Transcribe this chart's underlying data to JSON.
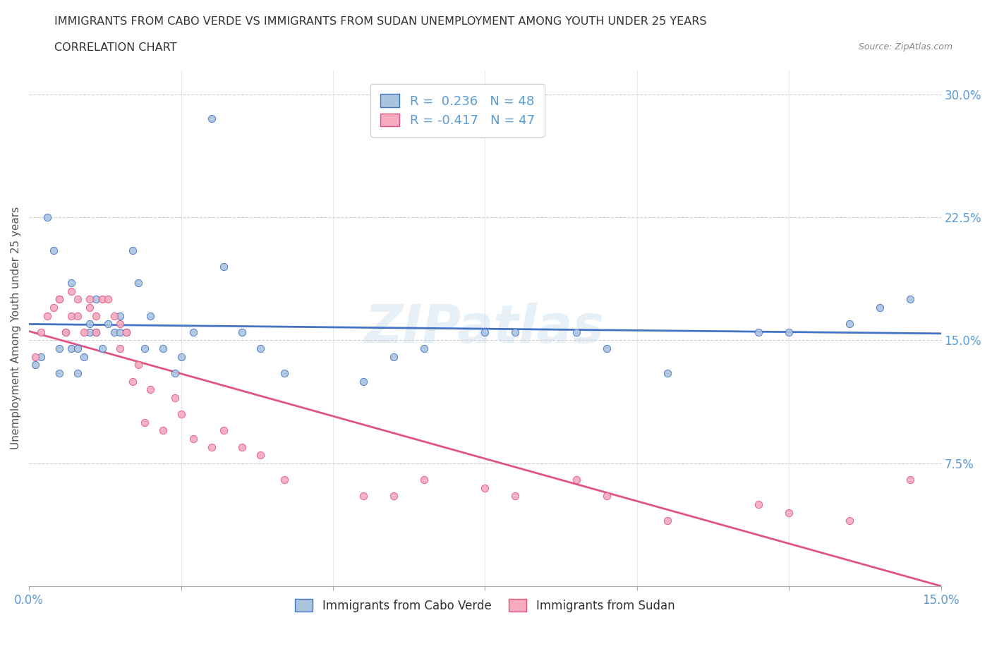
{
  "title_line1": "IMMIGRANTS FROM CABO VERDE VS IMMIGRANTS FROM SUDAN UNEMPLOYMENT AMONG YOUTH UNDER 25 YEARS",
  "title_line2": "CORRELATION CHART",
  "source": "Source: ZipAtlas.com",
  "ylabel": "Unemployment Among Youth under 25 years",
  "R_cabo": 0.236,
  "N_cabo": 48,
  "R_sudan": -0.417,
  "N_sudan": 47,
  "color_cabo": "#aac4e0",
  "color_sudan": "#f5aabf",
  "line_color_cabo": "#4472c4",
  "line_color_sudan": "#e05580",
  "watermark": "ZIPatlas",
  "legend_cabo": "Immigrants from Cabo Verde",
  "legend_sudan": "Immigrants from Sudan",
  "cabo_x": [
    0.001,
    0.002,
    0.003,
    0.004,
    0.005,
    0.005,
    0.006,
    0.007,
    0.007,
    0.008,
    0.008,
    0.009,
    0.01,
    0.01,
    0.011,
    0.011,
    0.012,
    0.013,
    0.014,
    0.015,
    0.015,
    0.016,
    0.017,
    0.018,
    0.019,
    0.02,
    0.022,
    0.024,
    0.025,
    0.027,
    0.03,
    0.032,
    0.035,
    0.038,
    0.042,
    0.055,
    0.06,
    0.065,
    0.075,
    0.08,
    0.09,
    0.095,
    0.105,
    0.12,
    0.125,
    0.135,
    0.14,
    0.145
  ],
  "cabo_y": [
    0.135,
    0.14,
    0.225,
    0.205,
    0.145,
    0.13,
    0.155,
    0.185,
    0.145,
    0.145,
    0.13,
    0.14,
    0.155,
    0.16,
    0.155,
    0.175,
    0.145,
    0.16,
    0.155,
    0.165,
    0.155,
    0.155,
    0.205,
    0.185,
    0.145,
    0.165,
    0.145,
    0.13,
    0.14,
    0.155,
    0.285,
    0.195,
    0.155,
    0.145,
    0.13,
    0.125,
    0.14,
    0.145,
    0.155,
    0.155,
    0.155,
    0.145,
    0.13,
    0.155,
    0.155,
    0.16,
    0.17,
    0.175
  ],
  "sudan_x": [
    0.001,
    0.002,
    0.003,
    0.004,
    0.005,
    0.005,
    0.006,
    0.007,
    0.007,
    0.008,
    0.008,
    0.009,
    0.01,
    0.01,
    0.011,
    0.011,
    0.012,
    0.013,
    0.014,
    0.015,
    0.015,
    0.016,
    0.017,
    0.018,
    0.019,
    0.02,
    0.022,
    0.024,
    0.025,
    0.027,
    0.03,
    0.032,
    0.035,
    0.038,
    0.042,
    0.055,
    0.06,
    0.065,
    0.075,
    0.08,
    0.09,
    0.095,
    0.105,
    0.12,
    0.125,
    0.135,
    0.145
  ],
  "sudan_y": [
    0.14,
    0.155,
    0.165,
    0.17,
    0.175,
    0.175,
    0.155,
    0.165,
    0.18,
    0.165,
    0.175,
    0.155,
    0.17,
    0.175,
    0.165,
    0.155,
    0.175,
    0.175,
    0.165,
    0.145,
    0.16,
    0.155,
    0.125,
    0.135,
    0.1,
    0.12,
    0.095,
    0.115,
    0.105,
    0.09,
    0.085,
    0.095,
    0.085,
    0.08,
    0.065,
    0.055,
    0.055,
    0.065,
    0.06,
    0.055,
    0.065,
    0.055,
    0.04,
    0.05,
    0.045,
    0.04,
    0.065
  ],
  "xlim": [
    0,
    0.15
  ],
  "ylim": [
    0,
    0.315
  ],
  "y_ticks": [
    0.075,
    0.15,
    0.225,
    0.3
  ],
  "y_labels": [
    "7.5%",
    "15.0%",
    "22.5%",
    "30.0%"
  ],
  "x_ticks": [
    0.0,
    0.025,
    0.05,
    0.075,
    0.1,
    0.125,
    0.15
  ],
  "x_labels": [
    "0.0%",
    "",
    "",
    "",
    "",
    "",
    "15.0%"
  ]
}
